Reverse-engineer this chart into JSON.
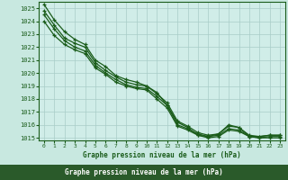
{
  "title": "Graphe pression niveau de la mer (hPa)",
  "bg_color": "#c8e8e0",
  "plot_bg": "#d0ede8",
  "grid_color": "#a8ccc8",
  "line_color": "#1a5c1a",
  "label_bg": "#2a5a2a",
  "label_fg": "#ffffff",
  "xlim": [
    -0.5,
    23.5
  ],
  "ylim": [
    1014.8,
    1025.5
  ],
  "yticks": [
    1015,
    1016,
    1017,
    1018,
    1019,
    1020,
    1021,
    1022,
    1023,
    1024,
    1025
  ],
  "xticks": [
    0,
    1,
    2,
    3,
    4,
    5,
    6,
    7,
    8,
    9,
    10,
    11,
    12,
    13,
    14,
    15,
    16,
    17,
    18,
    19,
    20,
    21,
    22,
    23
  ],
  "series": [
    [
      1025.3,
      1024.1,
      1023.2,
      1022.6,
      1022.2,
      1021.0,
      1020.5,
      1019.8,
      1019.5,
      1019.3,
      1019.0,
      1018.5,
      1017.5,
      1016.2,
      1015.8,
      1015.2,
      1015.1,
      1015.3,
      1016.0,
      1015.8,
      1015.1,
      1015.1,
      1015.2,
      1015.2
    ],
    [
      1024.8,
      1023.7,
      1022.7,
      1022.3,
      1022.0,
      1020.8,
      1020.2,
      1019.7,
      1019.3,
      1019.1,
      1019.0,
      1018.4,
      1017.7,
      1016.3,
      1015.9,
      1015.4,
      1015.2,
      1015.3,
      1015.9,
      1015.8,
      1015.2,
      1015.1,
      1015.2,
      1015.2
    ],
    [
      1024.5,
      1023.4,
      1022.5,
      1022.0,
      1021.7,
      1020.6,
      1020.0,
      1019.5,
      1019.1,
      1018.9,
      1018.8,
      1018.2,
      1017.5,
      1016.0,
      1015.7,
      1015.3,
      1015.1,
      1015.2,
      1015.7,
      1015.6,
      1015.1,
      1015.0,
      1015.1,
      1015.1
    ],
    [
      1024.0,
      1022.9,
      1022.2,
      1021.8,
      1021.5,
      1020.4,
      1019.9,
      1019.3,
      1019.0,
      1018.8,
      1018.7,
      1018.0,
      1017.3,
      1015.9,
      1015.6,
      1015.2,
      1015.0,
      1015.1,
      1015.6,
      1015.5,
      1015.1,
      1015.0,
      1015.0,
      1015.0
    ]
  ]
}
